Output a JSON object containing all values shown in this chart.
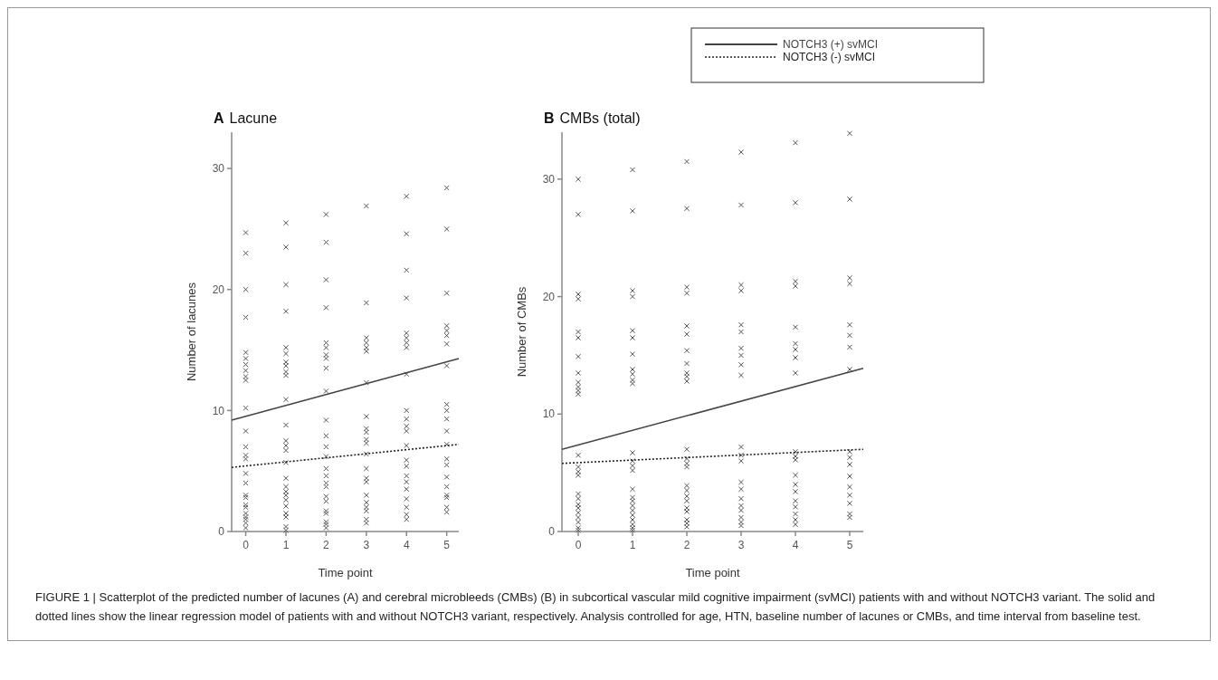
{
  "chart_data": [
    {
      "type": "scatter",
      "title": "A Lacune",
      "xlabel": "Time point",
      "ylabel": "Number of lacunes",
      "xlim": [
        -0.35,
        5.3
      ],
      "ylim": [
        0,
        33
      ],
      "xticks": [
        0,
        1,
        2,
        3,
        4,
        5
      ],
      "yticks": [
        0,
        10,
        20,
        30
      ],
      "grid": false,
      "legend": false,
      "annotations": [
        "FIGURE 1 | Scatterplot of the predicted number of lacunes (A) and cerebral microbleeds (CMBs) (B) in subcortical vascular mild cognitive impairment (svMCI) patients with and without NOTCH3 variant. The solid and dotted lines show the linear regression model of patients with and without NOTCH3 variant, respectively. Analysis controlled for age, HTN, baseline number of lacunes or CMBs, and time interval from baseline test."
      ],
      "series": [
        {
          "color": "#555555",
          "marker": "cross",
          "x": [
            0,
            0,
            0,
            0,
            0,
            0,
            0,
            0,
            0,
            0,
            0,
            0,
            0,
            0,
            0,
            0,
            0,
            0,
            0,
            0,
            0,
            0,
            0,
            0,
            0,
            0,
            1,
            1,
            1,
            1,
            1,
            1,
            1,
            1,
            1,
            1,
            1,
            1,
            1,
            1,
            1,
            1,
            1,
            1,
            1,
            1,
            1,
            1,
            1,
            1,
            1,
            1,
            2,
            2,
            2,
            2,
            2,
            2,
            2,
            2,
            2,
            2,
            2,
            2,
            2,
            2,
            2,
            2,
            2,
            2,
            2,
            2,
            2,
            2,
            2,
            2,
            2,
            3,
            3,
            3,
            3,
            3,
            3,
            3,
            3,
            3,
            3,
            3,
            3,
            3,
            3,
            3,
            3,
            3,
            3,
            3,
            3,
            3,
            3,
            4,
            4,
            4,
            4,
            4,
            4,
            4,
            4,
            4,
            4,
            4,
            4,
            4,
            4,
            4,
            4,
            4,
            4,
            4,
            4,
            4,
            4,
            4,
            5,
            5,
            5,
            5,
            5,
            5,
            5,
            5,
            5,
            5,
            5,
            5,
            5,
            5,
            5,
            5,
            5,
            5,
            5,
            5,
            5
          ],
          "values": [
            24.7,
            23,
            20,
            17.7,
            14.8,
            14.3,
            13.8,
            13.3,
            12.8,
            12.5,
            10.2,
            8.3,
            7,
            6.3,
            6,
            4.8,
            4,
            3,
            2.8,
            2.2,
            2,
            1.5,
            1.2,
            1,
            0.7,
            0.3,
            25.5,
            23.5,
            20.4,
            18.2,
            15.2,
            14.7,
            14,
            13.7,
            13.2,
            12.9,
            10.9,
            8.8,
            7.5,
            7.1,
            6.7,
            5.7,
            4.4,
            3.7,
            3.3,
            3,
            2.6,
            2.1,
            1.5,
            1.2,
            0.4,
            0.1,
            26.2,
            23.9,
            20.8,
            18.5,
            15.6,
            15.2,
            14.6,
            14.3,
            13.5,
            11.6,
            9.2,
            7.9,
            7,
            6.2,
            5.2,
            4.6,
            4,
            3.7,
            2.9,
            2.5,
            1.7,
            1.5,
            0.8,
            0.6,
            0.3,
            26.9,
            18.9,
            16,
            15.6,
            15.2,
            14.9,
            12.3,
            9.5,
            8.5,
            8.2,
            7.6,
            7.3,
            6.4,
            5.2,
            4.4,
            4.1,
            3,
            2.4,
            2,
            1.7,
            1,
            0.7,
            27.7,
            24.6,
            21.6,
            19.3,
            16.4,
            16,
            15.6,
            15.2,
            13,
            10,
            9.3,
            8.7,
            8.3,
            7.1,
            5.9,
            5.4,
            4.6,
            4.1,
            3.5,
            2.7,
            2,
            1.4,
            1,
            28.4,
            25,
            19.7,
            17,
            16.6,
            16.2,
            15.5,
            13.7,
            10.5,
            10,
            9.3,
            8.3,
            7.2,
            6,
            5.5,
            4.5,
            3.7,
            3,
            2.8,
            2,
            1.6
          ]
        },
        {
          "type": "line",
          "color": "#444444",
          "line_style": "solid",
          "marker": "none",
          "x": [
            -0.35,
            5.3
          ],
          "values": [
            9.2,
            14.3
          ]
        },
        {
          "type": "line",
          "color": "#222222",
          "line_style": "dotted",
          "marker": "none",
          "x": [
            -0.35,
            5.3
          ],
          "values": [
            5.3,
            7.2
          ]
        }
      ]
    },
    {
      "type": "scatter",
      "title": "B CMBs (total)",
      "xlabel": "Time point",
      "ylabel": "Number of CMBs",
      "xlim": [
        -0.3,
        5.25
      ],
      "ylim": [
        0,
        34
      ],
      "xticks": [
        0,
        1,
        2,
        3,
        4,
        5
      ],
      "yticks": [
        0,
        10,
        20,
        30
      ],
      "grid": false,
      "legend": "top right",
      "series": [
        {
          "color": "#555555",
          "marker": "cross",
          "x": [
            0,
            0,
            0,
            0,
            0,
            0,
            0,
            0,
            0,
            0,
            0,
            0,
            0,
            0,
            0,
            0,
            0,
            0,
            0,
            0,
            0,
            0,
            0,
            0,
            0,
            1,
            1,
            1,
            1,
            1,
            1,
            1,
            1,
            1,
            1,
            1,
            1,
            1,
            1,
            1,
            1,
            1,
            1,
            1,
            1,
            1,
            1,
            1,
            1,
            1,
            2,
            2,
            2,
            2,
            2,
            2,
            2,
            2,
            2,
            2,
            2,
            2,
            2,
            2,
            2,
            2,
            2,
            2,
            2,
            2,
            2,
            2,
            2,
            2,
            3,
            3,
            3,
            3,
            3,
            3,
            3,
            3,
            3,
            3,
            3,
            3,
            3,
            3,
            3,
            3,
            3,
            3,
            3,
            3,
            3,
            4,
            4,
            4,
            4,
            4,
            4,
            4,
            4,
            4,
            4,
            4,
            4,
            4,
            4,
            4,
            4,
            4,
            4,
            4,
            4,
            5,
            5,
            5,
            5,
            5,
            5,
            5,
            5,
            5,
            5,
            5,
            5,
            5,
            5,
            5,
            5,
            5
          ],
          "values": [
            30,
            27,
            20.2,
            19.8,
            17,
            16.5,
            14.9,
            13.5,
            12.7,
            12.3,
            12,
            11.7,
            6.5,
            5.5,
            5.1,
            4.8,
            3.2,
            2.8,
            2.3,
            2,
            1.6,
            1.2,
            0.8,
            0.3,
            0.1,
            30.8,
            27.3,
            20.5,
            20,
            17.1,
            16.5,
            15.1,
            13.8,
            13.4,
            12.9,
            12.6,
            6.7,
            6,
            5.6,
            5.2,
            3.6,
            2.9,
            2.6,
            2.2,
            1.8,
            1.4,
            1,
            0.6,
            0.3,
            0.1,
            31.5,
            27.5,
            20.8,
            20.3,
            17.5,
            16.8,
            15.4,
            14.3,
            13.5,
            13.2,
            12.8,
            7,
            6.2,
            5.8,
            5.5,
            3.9,
            3.5,
            3,
            2.6,
            2,
            1.7,
            1,
            0.7,
            0.4,
            32.3,
            27.8,
            21,
            20.5,
            17.6,
            17,
            15.6,
            15,
            14.2,
            13.3,
            7.2,
            6.5,
            6,
            4.2,
            3.6,
            2.8,
            2.2,
            1.8,
            1.2,
            0.8,
            0.5,
            33.1,
            28,
            21.3,
            20.9,
            17.4,
            16,
            15.5,
            14.8,
            13.5,
            6.8,
            6.4,
            6.1,
            4.8,
            4,
            3.4,
            2.6,
            2.1,
            1.5,
            1,
            0.6,
            33.9,
            28.3,
            21.6,
            21.1,
            17.6,
            16.7,
            15.7,
            13.8,
            6.8,
            6.3,
            5.7,
            4.7,
            3.8,
            3.1,
            2.4,
            1.5,
            1.2
          ]
        },
        {
          "type": "line",
          "name": "NOTCH3 (+) svMCI",
          "color": "#444444",
          "line_style": "solid",
          "marker": "none",
          "x": [
            -0.3,
            5.25
          ],
          "values": [
            7,
            13.9
          ]
        },
        {
          "type": "line",
          "name": "NOTCH3 (-) svMCI",
          "color": "#222222",
          "line_style": "dotted",
          "marker": "none",
          "x": [
            -0.3,
            5.25
          ],
          "values": [
            5.8,
            7
          ]
        }
      ]
    }
  ]
}
